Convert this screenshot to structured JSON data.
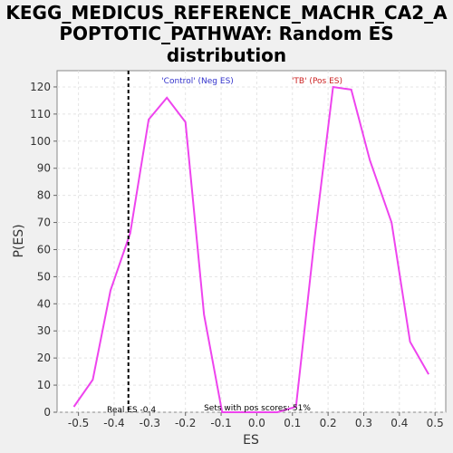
{
  "chart_data": {
    "type": "line",
    "title_lines": [
      "KEGG_MEDICUS_REFERENCE_MACHR_CA2_A",
      "POPTOTIC_PATHWAY: Random ES",
      "distribution"
    ],
    "xlabel": "ES",
    "ylabel": "P(ES)",
    "xlim": [
      -0.56,
      0.53
    ],
    "ylim": [
      0,
      126
    ],
    "x_ticks": [
      -0.5,
      -0.4,
      -0.3,
      -0.2,
      -0.1,
      0.0,
      0.1,
      0.2,
      0.3,
      0.4,
      0.5
    ],
    "x_tick_labels": [
      "-0.5",
      "-0.4",
      "-0.3",
      "-0.2",
      "-0.1",
      "0.0",
      "0.1",
      "0.2",
      "0.3",
      "0.4",
      "0.5"
    ],
    "y_ticks": [
      0,
      10,
      20,
      30,
      40,
      50,
      60,
      70,
      80,
      90,
      100,
      110,
      120
    ],
    "y_tick_labels": [
      "0",
      "10",
      "20",
      "30",
      "40",
      "50",
      "60",
      "70",
      "80",
      "90",
      "100",
      "110",
      "120"
    ],
    "grid": true,
    "series": [
      {
        "color": "#ee44ee",
        "x": [
          -0.513,
          -0.46,
          -0.41,
          -0.355,
          -0.303,
          -0.252,
          -0.2,
          -0.148,
          -0.097,
          -0.045,
          0.007,
          0.058,
          0.11,
          0.162,
          0.214,
          0.265,
          0.317,
          0.378,
          0.43,
          0.482
        ],
        "y": [
          2,
          12,
          45,
          66,
          108,
          116,
          107,
          36,
          0,
          0,
          0,
          0,
          2,
          64,
          120,
          119,
          93,
          70,
          26,
          14
        ]
      }
    ],
    "real_es": -0.36,
    "real_es_label": "Real ES -0.4",
    "annotations": {
      "control": "'Control' (Neg ES)",
      "control_color": "#3333cc",
      "tb": "'TB' (Pos ES)",
      "tb_color": "#cc2222",
      "pos_scores": "Sets with pos scores: 51%"
    }
  }
}
